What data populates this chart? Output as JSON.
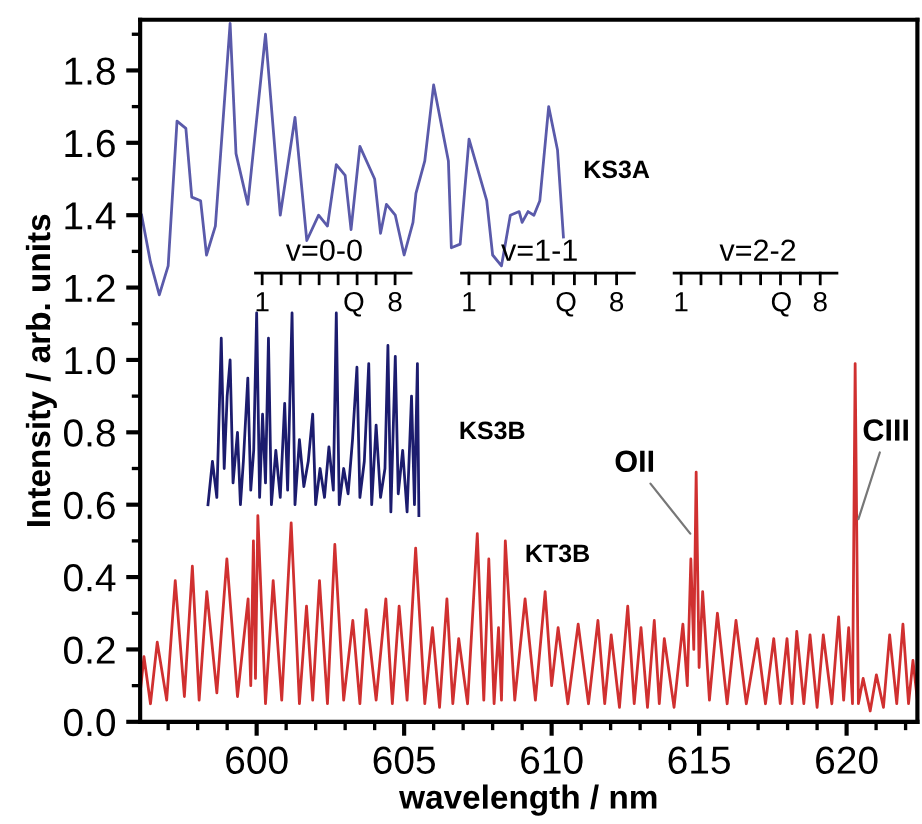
{
  "chart_data": {
    "type": "line",
    "xlabel": "wavelength / nm",
    "ylabel": "Intensity / arb. units",
    "xlim": [
      596.05,
      622.4
    ],
    "ylim": [
      0,
      1.94
    ],
    "xticks": [
      600,
      605,
      610,
      615,
      620
    ],
    "yticks": [
      {
        "value": 0,
        "label": "0.0"
      },
      {
        "value": 0.2,
        "label": "0.2"
      },
      {
        "value": 0.4,
        "label": "0.4"
      },
      {
        "value": 0.6,
        "label": "0.6"
      },
      {
        "value": 0.8,
        "label": "0.8"
      },
      {
        "value": 1.0,
        "label": "1.0"
      },
      {
        "value": 1.2,
        "label": "1.2"
      },
      {
        "value": 1.4,
        "label": "1.4"
      },
      {
        "value": 1.6,
        "label": "1.6"
      },
      {
        "value": 1.8,
        "label": "1.8"
      }
    ],
    "grid": false,
    "legend": false,
    "series": [
      {
        "name": "KS3A",
        "color": "#5a5aaa",
        "x": [
          596.1,
          596.4,
          596.7,
          597.0,
          597.3,
          597.6,
          597.8,
          598.1,
          598.3,
          598.6,
          599.1,
          599.3,
          599.7,
          600.3,
          600.8,
          601.3,
          601.7,
          602.1,
          602.4,
          602.7,
          603.0,
          603.2,
          603.5,
          604.0,
          604.2,
          604.4,
          604.7,
          605.0,
          605.3,
          605.4,
          605.7,
          606.0,
          606.5,
          606.6,
          606.9,
          607.2,
          607.8,
          608.0,
          608.3,
          608.6,
          608.9,
          609.0,
          609.2,
          609.4,
          609.6,
          609.9,
          610.2,
          610.4
        ],
        "values": [
          1.4,
          1.27,
          1.18,
          1.26,
          1.66,
          1.64,
          1.45,
          1.44,
          1.29,
          1.37,
          1.93,
          1.57,
          1.43,
          1.9,
          1.4,
          1.67,
          1.33,
          1.4,
          1.37,
          1.54,
          1.51,
          1.36,
          1.59,
          1.5,
          1.35,
          1.43,
          1.4,
          1.29,
          1.38,
          1.46,
          1.55,
          1.76,
          1.55,
          1.31,
          1.32,
          1.61,
          1.44,
          1.29,
          1.26,
          1.4,
          1.41,
          1.38,
          1.41,
          1.4,
          1.44,
          1.7,
          1.58,
          1.34
        ]
      },
      {
        "name": "KS3B",
        "color": "#1c1c6e",
        "x": [
          598.35,
          598.5,
          598.65,
          598.8,
          598.9,
          599.0,
          599.1,
          599.2,
          599.35,
          599.45,
          599.55,
          599.7,
          599.8,
          599.9,
          600.0,
          600.1,
          600.2,
          600.3,
          600.4,
          600.5,
          600.65,
          600.8,
          600.95,
          601.05,
          601.2,
          601.3,
          601.45,
          601.6,
          601.75,
          601.9,
          602.0,
          602.15,
          602.3,
          602.45,
          602.6,
          602.7,
          602.8,
          602.95,
          603.1,
          603.25,
          603.4,
          603.5,
          603.65,
          603.8,
          603.9,
          604.05,
          604.2,
          604.35,
          604.45,
          604.55,
          604.7,
          604.8,
          604.95,
          605.1,
          605.25,
          605.35,
          605.45,
          605.5
        ],
        "values": [
          0.6,
          0.72,
          0.62,
          1.06,
          0.7,
          0.9,
          1.0,
          0.66,
          0.8,
          0.6,
          0.72,
          0.95,
          0.64,
          0.75,
          1.13,
          0.62,
          0.85,
          0.66,
          1.06,
          0.6,
          0.75,
          0.62,
          0.88,
          0.64,
          1.13,
          0.6,
          0.78,
          0.65,
          0.72,
          0.85,
          0.6,
          0.7,
          0.62,
          0.76,
          0.64,
          1.13,
          0.6,
          0.7,
          0.63,
          0.78,
          0.98,
          0.62,
          0.72,
          0.99,
          0.6,
          0.82,
          0.62,
          0.7,
          1.04,
          0.58,
          1.01,
          0.63,
          0.75,
          0.58,
          0.9,
          0.6,
          0.99,
          0.57
        ]
      },
      {
        "name": "KT3B",
        "color": "#d03030",
        "x": [
          596.05,
          596.18,
          596.4,
          596.63,
          596.95,
          597.24,
          597.55,
          597.82,
          598.05,
          598.31,
          598.65,
          598.99,
          599.35,
          599.71,
          599.8,
          599.89,
          599.96,
          600.04,
          600.3,
          600.56,
          600.85,
          601.17,
          601.45,
          601.69,
          601.9,
          602.13,
          602.4,
          602.65,
          602.95,
          603.26,
          603.5,
          603.71,
          604.05,
          604.38,
          604.6,
          604.83,
          605.1,
          605.39,
          605.7,
          605.96,
          606.2,
          606.45,
          606.65,
          606.85,
          607.15,
          607.48,
          607.7,
          607.87,
          608.05,
          608.2,
          608.3,
          608.43,
          608.75,
          609.1,
          609.45,
          609.78,
          610.0,
          610.22,
          610.55,
          610.9,
          611.25,
          611.57,
          611.8,
          612.02,
          612.3,
          612.58,
          612.8,
          613.03,
          613.25,
          613.48,
          613.65,
          613.82,
          614.15,
          614.45,
          614.6,
          614.72,
          614.82,
          614.9,
          615.0,
          615.12,
          615.35,
          615.62,
          615.95,
          616.25,
          616.6,
          616.97,
          617.25,
          617.53,
          617.75,
          617.98,
          618.15,
          618.31,
          618.55,
          618.76,
          619.0,
          619.21,
          619.5,
          619.73,
          619.9,
          620.07,
          620.2,
          620.29,
          620.4,
          620.56,
          620.8,
          621.01,
          621.25,
          621.46,
          621.7,
          621.91,
          622.1,
          622.25,
          622.4
        ],
        "values": [
          0.08,
          0.18,
          0.05,
          0.22,
          0.06,
          0.39,
          0.07,
          0.43,
          0.06,
          0.36,
          0.08,
          0.45,
          0.07,
          0.34,
          0.1,
          0.5,
          0.12,
          0.57,
          0.05,
          0.39,
          0.06,
          0.55,
          0.05,
          0.32,
          0.06,
          0.39,
          0.05,
          0.49,
          0.06,
          0.28,
          0.05,
          0.31,
          0.06,
          0.34,
          0.05,
          0.32,
          0.06,
          0.48,
          0.05,
          0.26,
          0.04,
          0.34,
          0.05,
          0.23,
          0.05,
          0.52,
          0.06,
          0.45,
          0.05,
          0.26,
          0.06,
          0.5,
          0.06,
          0.34,
          0.06,
          0.36,
          0.1,
          0.26,
          0.05,
          0.27,
          0.05,
          0.28,
          0.05,
          0.24,
          0.04,
          0.32,
          0.05,
          0.26,
          0.04,
          0.28,
          0.05,
          0.23,
          0.04,
          0.27,
          0.1,
          0.45,
          0.2,
          0.69,
          0.15,
          0.36,
          0.06,
          0.3,
          0.05,
          0.28,
          0.05,
          0.23,
          0.05,
          0.23,
          0.05,
          0.23,
          0.05,
          0.25,
          0.05,
          0.24,
          0.04,
          0.24,
          0.05,
          0.29,
          0.06,
          0.26,
          0.05,
          0.99,
          0.05,
          0.12,
          0.03,
          0.13,
          0.04,
          0.24,
          0.05,
          0.27,
          0.05,
          0.17,
          0.06
        ]
      }
    ],
    "annotations": [
      {
        "text": "OII",
        "x": 614.7,
        "y": 0.52
      },
      {
        "text": "CIII",
        "x": 620.4,
        "y": 0.56
      },
      "v=0-0",
      "1",
      "Q",
      "8",
      "v=1-1",
      "1",
      "Q",
      "8",
      "v=2-2",
      "1",
      "Q",
      "8"
    ]
  }
}
